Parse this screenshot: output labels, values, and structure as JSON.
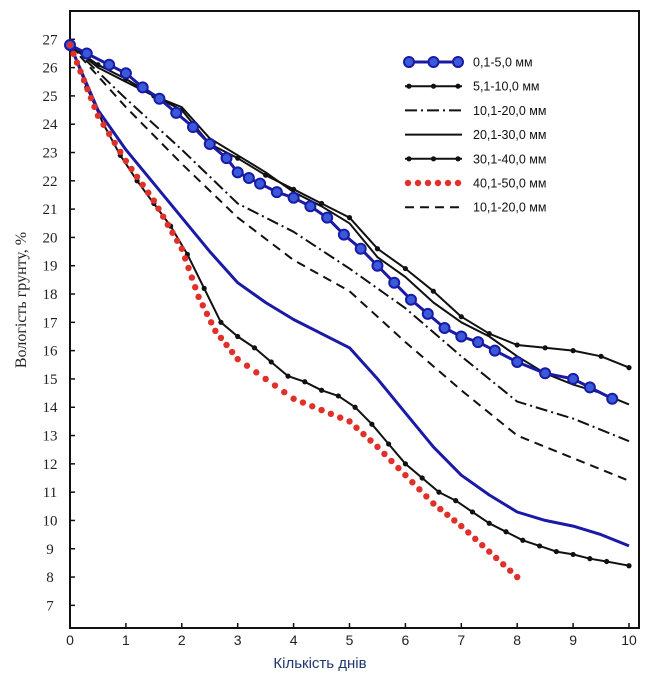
{
  "chart_data": {
    "type": "line",
    "xlabel": "Кількість днів",
    "ylabel": "Вологість грунту, %",
    "xlim": [
      0,
      10
    ],
    "ylim": [
      6.2,
      28
    ],
    "x_ticks": [
      "0",
      "1",
      "2",
      "3",
      "4",
      "5",
      "6",
      "7",
      "8",
      "9",
      "10"
    ],
    "y_ticks": [
      "7",
      "8",
      "9",
      "10",
      "11",
      "12",
      "13",
      "14",
      "15",
      "16",
      "17",
      "18",
      "19",
      "20",
      "21",
      "22",
      "23",
      "24",
      "25",
      "26",
      "27"
    ],
    "grid": false,
    "legend_position": "top-right",
    "series": [
      {
        "name": "0,1-5,0 мм",
        "color": "#1a1aa6",
        "style": "circle-line",
        "x": [
          0,
          0.3,
          0.7,
          1.0,
          1.3,
          1.6,
          1.9,
          2.2,
          2.5,
          2.8,
          3.0,
          3.2,
          3.4,
          3.7,
          4.0,
          4.3,
          4.6,
          4.9,
          5.2,
          5.5,
          5.8,
          6.1,
          6.4,
          6.7,
          7.0,
          7.3,
          7.6,
          8.0,
          8.5,
          9.0,
          9.3,
          9.7
        ],
        "y": [
          26.8,
          26.5,
          26.1,
          25.8,
          25.3,
          24.9,
          24.4,
          23.9,
          23.3,
          22.8,
          22.3,
          22.1,
          21.9,
          21.6,
          21.4,
          21.1,
          20.7,
          20.1,
          19.6,
          19.0,
          18.4,
          17.8,
          17.3,
          16.8,
          16.5,
          16.3,
          16.0,
          15.6,
          15.2,
          15.0,
          14.7,
          14.3
        ]
      },
      {
        "name": "5,1-10,0 мм",
        "color": "#111111",
        "style": "dot-line",
        "x": [
          0,
          0.5,
          1,
          1.5,
          2,
          2.5,
          3,
          3.5,
          4,
          4.5,
          5,
          5.5,
          6,
          6.5,
          7,
          7.5,
          8,
          8.5,
          9,
          9.5,
          10
        ],
        "y": [
          26.8,
          26.1,
          25.6,
          25.0,
          24.5,
          23.3,
          22.8,
          22.2,
          21.7,
          21.2,
          20.7,
          19.6,
          18.9,
          18.1,
          17.2,
          16.6,
          16.2,
          16.1,
          16.0,
          15.8,
          15.4
        ]
      },
      {
        "name": "10,1-20,0 мм",
        "color": "#111111",
        "style": "dashdot",
        "x": [
          0,
          1,
          2,
          3,
          4,
          5,
          6,
          7,
          8,
          9,
          10
        ],
        "y": [
          26.8,
          24.9,
          23.1,
          21.2,
          20.2,
          18.9,
          17.5,
          15.8,
          14.2,
          13.6,
          12.8
        ]
      },
      {
        "name": "20,1-30,0 мм",
        "color": "#111111",
        "style": "solid",
        "x": [
          0,
          0.5,
          1,
          1.5,
          2,
          2.5,
          3,
          3.5,
          4,
          4.5,
          5,
          5.5,
          6,
          6.5,
          7,
          7.5,
          8,
          8.5,
          9,
          9.5,
          10
        ],
        "y": [
          26.8,
          26.0,
          25.5,
          25.0,
          24.6,
          23.5,
          22.9,
          22.3,
          21.6,
          21.1,
          20.5,
          19.3,
          18.6,
          17.7,
          17.0,
          16.5,
          15.8,
          15.2,
          14.8,
          14.5,
          14.1
        ]
      },
      {
        "name": "30,1-40,0 мм",
        "color": "#111111",
        "style": "dot-line",
        "x": [
          0,
          0.3,
          0.6,
          0.9,
          1.2,
          1.5,
          1.8,
          2.1,
          2.4,
          2.7,
          3.0,
          3.3,
          3.6,
          3.9,
          4.2,
          4.5,
          4.8,
          5.1,
          5.4,
          5.7,
          6.0,
          6.3,
          6.6,
          6.9,
          7.2,
          7.5,
          7.8,
          8.1,
          8.4,
          8.7,
          9.0,
          9.3,
          9.6,
          10.0
        ],
        "y": [
          26.8,
          25.3,
          24.0,
          22.9,
          22.0,
          21.2,
          20.4,
          19.4,
          18.2,
          17.0,
          16.5,
          16.1,
          15.6,
          15.1,
          14.9,
          14.6,
          14.4,
          14.0,
          13.4,
          12.7,
          12.0,
          11.5,
          11.0,
          10.7,
          10.3,
          9.9,
          9.6,
          9.3,
          9.1,
          8.9,
          8.8,
          8.65,
          8.55,
          8.4
        ]
      },
      {
        "name": "40,1-50,0 мм",
        "color": "#e0302a",
        "style": "dotted",
        "x": [
          0,
          0.5,
          1,
          1.5,
          2,
          2.3,
          2.6,
          3,
          3.5,
          4,
          4.5,
          5,
          5.5,
          6,
          6.5,
          7,
          7.5,
          8
        ],
        "y": [
          26.8,
          24.3,
          22.7,
          21.3,
          19.6,
          17.9,
          16.7,
          15.7,
          15.0,
          14.3,
          13.9,
          13.5,
          12.6,
          11.6,
          10.6,
          9.8,
          8.9,
          8.0
        ]
      },
      {
        "name": "10,1-20,0 мм",
        "color": "#111111",
        "style": "dashed",
        "x": [
          0,
          1,
          2,
          3,
          4,
          5,
          6,
          7,
          8,
          9,
          10
        ],
        "y": [
          26.8,
          24.6,
          22.6,
          20.7,
          19.2,
          18.1,
          16.3,
          14.6,
          13.0,
          12.2,
          11.4
        ]
      },
      {
        "name": "",
        "color": "#1a1aa6",
        "style": "solid-thick",
        "x": [
          0,
          0.5,
          1,
          1.5,
          2,
          2.5,
          3,
          3.5,
          4,
          4.5,
          5,
          5.5,
          6,
          6.5,
          7,
          7.5,
          8,
          8.5,
          9,
          9.5,
          10
        ],
        "y": [
          26.8,
          24.5,
          23.1,
          21.9,
          20.7,
          19.5,
          18.4,
          17.7,
          17.1,
          16.6,
          16.1,
          15.0,
          13.8,
          12.6,
          11.6,
          10.9,
          10.3,
          10.0,
          9.8,
          9.5,
          9.1
        ]
      }
    ]
  }
}
